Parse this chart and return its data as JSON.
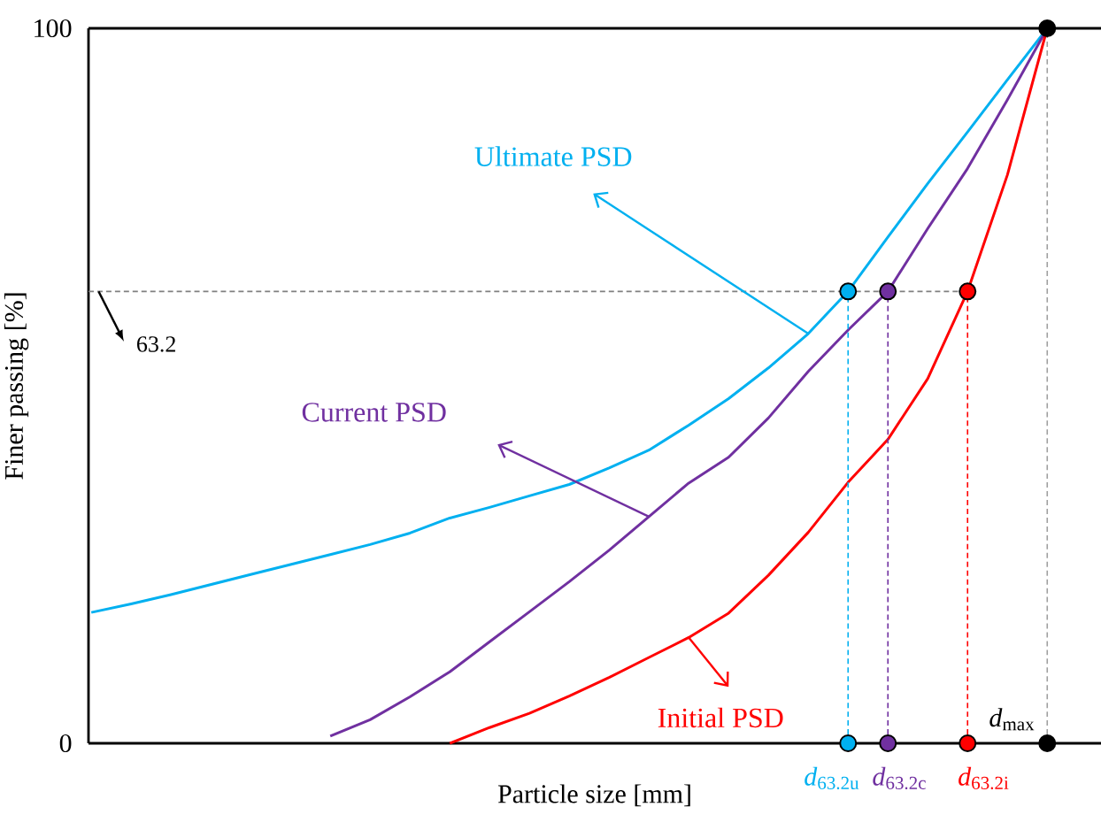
{
  "chart_data": {
    "type": "line",
    "xlabel": "Particle size [mm]",
    "ylabel": "Finer passing [%]",
    "categories": [
      null,
      null,
      null,
      null,
      null,
      null,
      null,
      null,
      null,
      null,
      null,
      null,
      null,
      null,
      null,
      null,
      null,
      null,
      null,
      null,
      null,
      null,
      null,
      null,
      null
    ],
    "ylim": [
      0,
      100
    ],
    "yticks": [
      0,
      100
    ],
    "tick_labels": "y",
    "series": [
      {
        "name": "Ultimate PSD",
        "color": "#00b0f0",
        "values": [
          18.3,
          19.5,
          20.8,
          22.2,
          23.6,
          25.0,
          26.4,
          27.8,
          29.4,
          31.5,
          33.0,
          34.6,
          36.2,
          38.5,
          41.0,
          44.5,
          48.2,
          52.5,
          57.3,
          63.2,
          70.8,
          78.3,
          85.5,
          92.8,
          100
        ]
      },
      {
        "name": "Current PSD",
        "color": "#7030a0",
        "values": [
          null,
          null,
          null,
          null,
          null,
          null,
          1.0,
          3.3,
          6.5,
          10.0,
          14.2,
          18.4,
          22.6,
          27.0,
          31.7,
          36.4,
          40.0,
          45.5,
          52.0,
          57.8,
          63.2,
          72.0,
          80.4,
          90.0,
          100
        ]
      },
      {
        "name": "Initial PSD",
        "color": "#ff0000",
        "values": [
          null,
          null,
          null,
          null,
          null,
          null,
          null,
          null,
          null,
          0,
          2.2,
          4.2,
          6.6,
          9.2,
          12.0,
          14.8,
          18.2,
          23.5,
          29.5,
          36.5,
          42.5,
          51.0,
          63.2,
          79.5,
          100
        ]
      },
      {
        "type": "lollipop",
        "marker": "circle",
        "line_style": "dashed",
        "values": [
          null,
          null,
          null,
          null,
          null,
          null,
          null,
          null,
          null,
          null,
          null,
          null,
          null,
          null,
          null,
          null,
          null,
          null,
          null,
          63.2,
          63.2,
          null,
          63.2,
          null,
          100
        ],
        "colors": [
          null,
          null,
          null,
          null,
          null,
          null,
          null,
          null,
          null,
          null,
          null,
          null,
          null,
          null,
          null,
          null,
          null,
          null,
          null,
          "#00b0f0",
          "#7030a0",
          null,
          "#ff0000",
          null,
          "#000000"
        ]
      },
      {
        "type": "scatter",
        "marker": "circle",
        "values": [
          null,
          null,
          null,
          null,
          null,
          null,
          null,
          null,
          null,
          null,
          null,
          null,
          null,
          null,
          null,
          null,
          null,
          null,
          null,
          0,
          0,
          null,
          0,
          null,
          0
        ],
        "colors": [
          null,
          null,
          null,
          null,
          null,
          null,
          null,
          null,
          null,
          null,
          null,
          null,
          null,
          null,
          null,
          null,
          null,
          null,
          null,
          "#00b0f0",
          "#7030a0",
          null,
          "#ff0000",
          null,
          "#000000"
        ]
      }
    ],
    "ref_lines": [
      {
        "axis": "y",
        "value": 63.2,
        "label": "63.2",
        "color": "#808080",
        "line_style": "dashed"
      }
    ],
    "annotations": [
      "*d*$_{63.2u}$",
      "*d*$_{63.2c}$",
      "*d*$_{63.2i}$",
      "*d*$_{max}$"
    ]
  }
}
